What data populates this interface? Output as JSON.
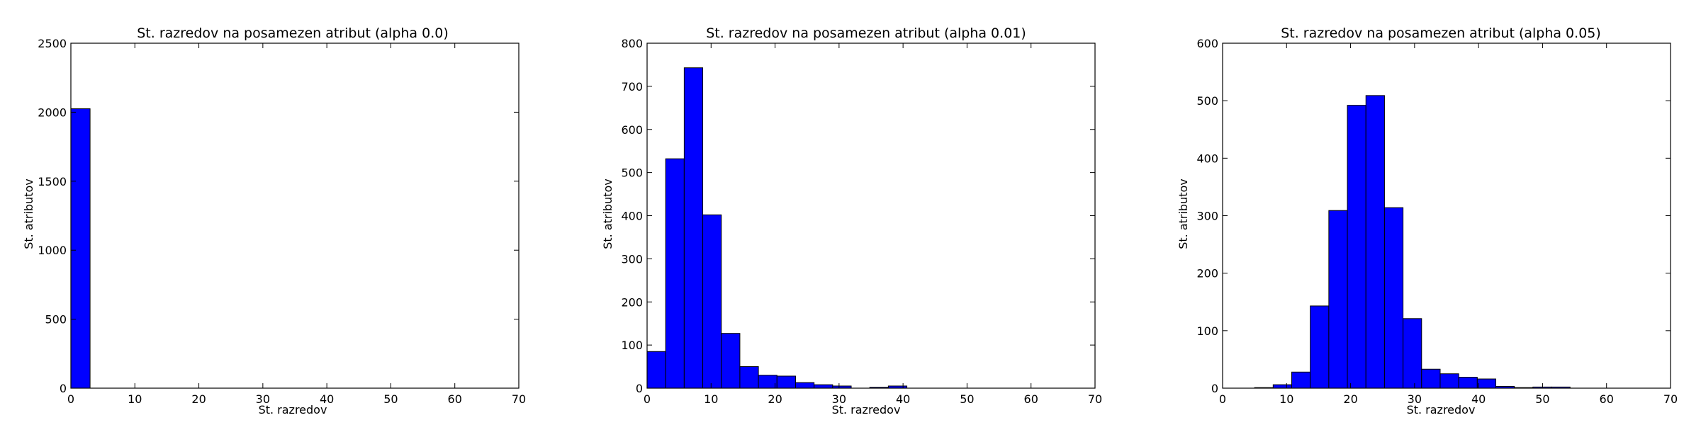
{
  "chart_data": [
    {
      "type": "bar",
      "title": "St. razredov na posamezen atribut (alpha 0.0)",
      "xlabel": "St. razredov",
      "ylabel": "St. atributov",
      "xlim": [
        0,
        70
      ],
      "ylim": [
        0,
        2500
      ],
      "xticks": [
        0,
        10,
        20,
        30,
        40,
        50,
        60,
        70
      ],
      "yticks": [
        0,
        500,
        1000,
        1500,
        2000,
        2500
      ],
      "bins": [
        {
          "x0": 0,
          "x1": 3,
          "value": 2025
        }
      ],
      "bar_color": "#0000ff",
      "grid": false
    },
    {
      "type": "bar",
      "title": "St. razredov na posamezen atribut (alpha 0.01)",
      "xlabel": "St. razredov",
      "ylabel": "St. atributov",
      "xlim": [
        0,
        70
      ],
      "ylim": [
        0,
        800
      ],
      "xticks": [
        0,
        10,
        20,
        30,
        40,
        50,
        60,
        70
      ],
      "yticks": [
        0,
        100,
        200,
        300,
        400,
        500,
        600,
        700,
        800
      ],
      "bins": [
        {
          "x0": 0,
          "x1": 2.9,
          "value": 85
        },
        {
          "x0": 2.9,
          "x1": 5.8,
          "value": 532
        },
        {
          "x0": 5.8,
          "x1": 8.7,
          "value": 743
        },
        {
          "x0": 8.7,
          "x1": 11.6,
          "value": 402
        },
        {
          "x0": 11.6,
          "x1": 14.5,
          "value": 127
        },
        {
          "x0": 14.5,
          "x1": 17.4,
          "value": 50
        },
        {
          "x0": 17.4,
          "x1": 20.3,
          "value": 30
        },
        {
          "x0": 20.3,
          "x1": 23.2,
          "value": 28
        },
        {
          "x0": 23.2,
          "x1": 26.1,
          "value": 13
        },
        {
          "x0": 26.1,
          "x1": 29.0,
          "value": 8
        },
        {
          "x0": 29.0,
          "x1": 31.9,
          "value": 5
        },
        {
          "x0": 31.9,
          "x1": 34.8,
          "value": 0
        },
        {
          "x0": 34.8,
          "x1": 37.7,
          "value": 2
        },
        {
          "x0": 37.7,
          "x1": 40.6,
          "value": 5
        }
      ],
      "bar_color": "#0000ff",
      "grid": false
    },
    {
      "type": "bar",
      "title": "St. razredov na posamezen atribut (alpha 0.05)",
      "xlabel": "St. razredov",
      "ylabel": "St. atributov",
      "xlim": [
        0,
        70
      ],
      "ylim": [
        0,
        600
      ],
      "xticks": [
        0,
        10,
        20,
        30,
        40,
        50,
        60,
        70
      ],
      "yticks": [
        0,
        100,
        200,
        300,
        400,
        500,
        600
      ],
      "bins": [
        {
          "x0": 5.0,
          "x1": 7.9,
          "value": 1
        },
        {
          "x0": 7.9,
          "x1": 10.8,
          "value": 6
        },
        {
          "x0": 10.8,
          "x1": 13.7,
          "value": 28
        },
        {
          "x0": 13.7,
          "x1": 16.6,
          "value": 143
        },
        {
          "x0": 16.6,
          "x1": 19.5,
          "value": 309
        },
        {
          "x0": 19.5,
          "x1": 22.4,
          "value": 492
        },
        {
          "x0": 22.4,
          "x1": 25.3,
          "value": 509
        },
        {
          "x0": 25.3,
          "x1": 28.2,
          "value": 314
        },
        {
          "x0": 28.2,
          "x1": 31.1,
          "value": 121
        },
        {
          "x0": 31.1,
          "x1": 34.0,
          "value": 33
        },
        {
          "x0": 34.0,
          "x1": 36.9,
          "value": 25
        },
        {
          "x0": 36.9,
          "x1": 39.8,
          "value": 19
        },
        {
          "x0": 39.8,
          "x1": 42.7,
          "value": 16
        },
        {
          "x0": 42.7,
          "x1": 45.6,
          "value": 3
        },
        {
          "x0": 45.6,
          "x1": 48.5,
          "value": 1
        },
        {
          "x0": 48.5,
          "x1": 51.4,
          "value": 2
        },
        {
          "x0": 51.4,
          "x1": 54.3,
          "value": 2
        }
      ],
      "bar_color": "#0000ff",
      "grid": false
    }
  ]
}
